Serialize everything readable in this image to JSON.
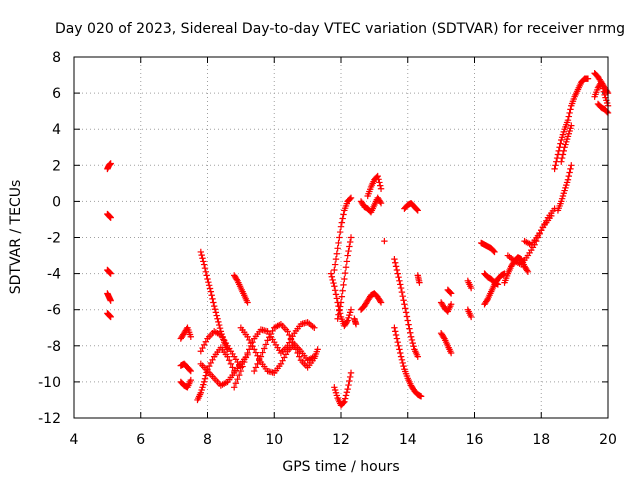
{
  "chart_data": {
    "type": "scatter",
    "title": "Day 020 of 2023, Sidereal Day-to-day VTEC variation (SDTVAR) for receiver nrmg",
    "xlabel": "GPS time / hours",
    "ylabel": "SDTVAR / TECUs",
    "xlim": [
      4,
      20
    ],
    "ylim": [
      -12,
      8
    ],
    "xticks": [
      4,
      6,
      8,
      10,
      12,
      14,
      16,
      18,
      20
    ],
    "yticks": [
      -12,
      -10,
      -8,
      -6,
      -4,
      -2,
      0,
      2,
      4,
      6,
      8
    ],
    "grid": true,
    "marker": "plus",
    "color": "#ff0000",
    "segments": [
      {
        "x": [
          5.0,
          5.05,
          5.1
        ],
        "y": [
          1.8,
          2.0,
          2.1
        ]
      },
      {
        "x": [
          5.0,
          5.05,
          5.1
        ],
        "y": [
          -0.7,
          -0.8,
          -0.9
        ]
      },
      {
        "x": [
          5.0,
          5.05,
          5.1
        ],
        "y": [
          -3.8,
          -3.9,
          -4.0
        ]
      },
      {
        "x": [
          5.0,
          5.05,
          5.1
        ],
        "y": [
          -5.1,
          -5.3,
          -5.5
        ]
      },
      {
        "x": [
          5.0,
          5.05,
          5.1
        ],
        "y": [
          -6.2,
          -6.3,
          -6.4
        ]
      },
      {
        "x": [
          7.2,
          7.3,
          7.4,
          7.5
        ],
        "y": [
          -7.6,
          -7.3,
          -7.0,
          -7.5
        ]
      },
      {
        "x": [
          7.2,
          7.3,
          7.4,
          7.5
        ],
        "y": [
          -9.1,
          -9.0,
          -9.2,
          -9.4
        ]
      },
      {
        "x": [
          7.2,
          7.3,
          7.4,
          7.5
        ],
        "y": [
          -10.0,
          -10.2,
          -10.3,
          -9.9
        ]
      },
      {
        "x": [
          7.8,
          7.9,
          8.0,
          8.1,
          8.2,
          8.3,
          8.4,
          8.5,
          8.6
        ],
        "y": [
          -2.8,
          -3.5,
          -4.3,
          -5.0,
          -5.8,
          -6.5,
          -7.2,
          -7.8,
          -8.2
        ]
      },
      {
        "x": [
          7.7,
          7.8,
          7.9,
          8.0,
          8.2,
          8.4,
          8.6,
          8.8
        ],
        "y": [
          -11.0,
          -10.6,
          -10.0,
          -9.3,
          -8.6,
          -8.1,
          -8.6,
          -9.4
        ]
      },
      {
        "x": [
          7.8,
          8.0,
          8.2,
          8.4,
          8.6,
          8.8,
          9.0
        ],
        "y": [
          -8.3,
          -7.6,
          -7.2,
          -7.4,
          -8.0,
          -8.6,
          -9.2
        ]
      },
      {
        "x": [
          7.8,
          8.0,
          8.2,
          8.4,
          8.6,
          8.8,
          9.0,
          9.2
        ],
        "y": [
          -9.0,
          -9.4,
          -9.8,
          -10.2,
          -10.0,
          -9.5,
          -9.0,
          -8.5
        ]
      },
      {
        "x": [
          8.8,
          8.9,
          9.0,
          9.1,
          9.2
        ],
        "y": [
          -4.1,
          -4.4,
          -4.8,
          -5.2,
          -5.6
        ]
      },
      {
        "x": [
          8.8,
          9.0,
          9.2,
          9.4,
          9.6,
          9.8,
          10.0,
          10.2,
          10.4,
          10.6,
          10.8,
          11.0,
          11.2
        ],
        "y": [
          -10.3,
          -9.4,
          -8.4,
          -7.6,
          -7.1,
          -7.2,
          -7.8,
          -8.4,
          -8.0,
          -7.3,
          -6.8,
          -6.7,
          -7.0
        ]
      },
      {
        "x": [
          9.0,
          9.2,
          9.4,
          9.6,
          9.8,
          10.0,
          10.2,
          10.4,
          10.6,
          10.8,
          11.0,
          11.2
        ],
        "y": [
          -7.0,
          -7.5,
          -8.2,
          -8.9,
          -9.4,
          -9.5,
          -9.0,
          -8.3,
          -7.9,
          -8.3,
          -8.8,
          -8.6
        ]
      },
      {
        "x": [
          9.4,
          9.6,
          9.8,
          10.0,
          10.2,
          10.4,
          10.6,
          10.8,
          11.0,
          11.2,
          11.3
        ],
        "y": [
          -9.4,
          -8.6,
          -7.7,
          -7.0,
          -6.8,
          -7.2,
          -8.0,
          -8.8,
          -9.2,
          -8.7,
          -8.2
        ]
      },
      {
        "x": [
          11.8,
          11.9,
          12.0,
          12.1,
          12.2,
          12.3
        ],
        "y": [
          -10.3,
          -10.9,
          -11.3,
          -11.1,
          -10.4,
          -9.5
        ]
      },
      {
        "x": [
          11.7,
          11.8,
          11.9,
          12.0,
          12.1,
          12.2,
          12.3
        ],
        "y": [
          -4.0,
          -4.7,
          -5.6,
          -6.4,
          -6.9,
          -6.6,
          -6.0
        ]
      },
      {
        "x": [
          11.8,
          11.9,
          12.0,
          12.1,
          12.2,
          12.3
        ],
        "y": [
          -3.8,
          -2.6,
          -1.4,
          -0.5,
          0.0,
          0.2
        ]
      },
      {
        "x": [
          11.9,
          12.0,
          12.1,
          12.2,
          12.3
        ],
        "y": [
          -6.5,
          -5.6,
          -4.3,
          -3.0,
          -2.0
        ]
      },
      {
        "x": [
          12.4,
          12.45
        ],
        "y": [
          -6.5,
          -6.8
        ]
      },
      {
        "x": [
          12.6,
          12.7,
          12.8,
          12.9,
          13.0,
          13.1,
          13.2
        ],
        "y": [
          0.0,
          -0.3,
          -0.4,
          -0.6,
          -0.2,
          0.2,
          -0.1
        ]
      },
      {
        "x": [
          12.8,
          12.9,
          13.0,
          13.1,
          13.2
        ],
        "y": [
          0.3,
          0.8,
          1.2,
          1.4,
          0.7
        ]
      },
      {
        "x": [
          12.6,
          12.7,
          12.8,
          12.9,
          13.0,
          13.1,
          13.2
        ],
        "y": [
          -6.0,
          -5.8,
          -5.5,
          -5.2,
          -5.1,
          -5.3,
          -5.6
        ]
      },
      {
        "x": [
          13.3
        ],
        "y": [
          -2.2
        ]
      },
      {
        "x": [
          13.6,
          13.7,
          13.8,
          13.9,
          14.0,
          14.1,
          14.2,
          14.3
        ],
        "y": [
          -3.2,
          -4.0,
          -4.8,
          -5.7,
          -6.6,
          -7.5,
          -8.2,
          -8.6
        ]
      },
      {
        "x": [
          13.6,
          13.7,
          13.8,
          13.9,
          14.0,
          14.1,
          14.2,
          14.3,
          14.4
        ],
        "y": [
          -7.0,
          -7.8,
          -8.6,
          -9.3,
          -9.8,
          -10.2,
          -10.5,
          -10.7,
          -10.8
        ]
      },
      {
        "x": [
          13.9,
          14.0,
          14.1,
          14.2,
          14.3
        ],
        "y": [
          -0.4,
          -0.2,
          -0.1,
          -0.3,
          -0.5
        ]
      },
      {
        "x": [
          14.3,
          14.35
        ],
        "y": [
          -4.1,
          -4.5
        ]
      },
      {
        "x": [
          15.0,
          15.1,
          15.2,
          15.3
        ],
        "y": [
          -5.6,
          -5.9,
          -6.1,
          -5.7
        ]
      },
      {
        "x": [
          15.0,
          15.1,
          15.2,
          15.3
        ],
        "y": [
          -7.3,
          -7.6,
          -8.0,
          -8.4
        ]
      },
      {
        "x": [
          15.2,
          15.3
        ],
        "y": [
          -4.9,
          -5.1
        ]
      },
      {
        "x": [
          15.8,
          15.9
        ],
        "y": [
          -4.4,
          -4.8
        ]
      },
      {
        "x": [
          15.8,
          15.9
        ],
        "y": [
          -6.0,
          -6.4
        ]
      },
      {
        "x": [
          16.2,
          16.3,
          16.4,
          16.5,
          16.6
        ],
        "y": [
          -2.3,
          -2.4,
          -2.5,
          -2.6,
          -2.8
        ]
      },
      {
        "x": [
          16.3,
          16.4,
          16.5,
          16.6,
          16.7,
          16.8,
          16.9
        ],
        "y": [
          -5.7,
          -5.4,
          -5.0,
          -4.6,
          -4.3,
          -4.1,
          -4.0
        ]
      },
      {
        "x": [
          16.3,
          16.4,
          16.5,
          16.6,
          16.7
        ],
        "y": [
          -4.0,
          -4.2,
          -4.3,
          -4.5,
          -4.6
        ]
      },
      {
        "x": [
          16.9,
          17.0,
          17.1,
          17.2,
          17.3,
          17.4,
          17.5,
          17.6
        ],
        "y": [
          -4.5,
          -4.0,
          -3.6,
          -3.3,
          -3.1,
          -3.2,
          -3.6,
          -3.9
        ]
      },
      {
        "x": [
          17.0,
          17.2,
          17.4,
          17.6,
          17.8,
          18.0,
          18.2,
          18.4
        ],
        "y": [
          -3.0,
          -3.3,
          -3.5,
          -3.0,
          -2.4,
          -1.6,
          -0.9,
          -0.4
        ]
      },
      {
        "x": [
          17.5,
          17.7,
          17.9,
          18.1,
          18.3
        ],
        "y": [
          -2.2,
          -2.4,
          -1.9,
          -1.3,
          -0.8
        ]
      },
      {
        "x": [
          18.4,
          18.5,
          18.6,
          18.7,
          18.8,
          18.9,
          19.0,
          19.1,
          19.2,
          19.3,
          19.4
        ],
        "y": [
          1.8,
          2.6,
          3.4,
          4.0,
          4.5,
          5.3,
          5.8,
          6.2,
          6.6,
          6.8,
          6.8
        ]
      },
      {
        "x": [
          18.5,
          18.6,
          18.7,
          18.8,
          18.9
        ],
        "y": [
          -0.5,
          0.0,
          0.6,
          1.2,
          2.0
        ]
      },
      {
        "x": [
          18.6,
          18.7,
          18.8,
          18.9
        ],
        "y": [
          2.2,
          3.0,
          3.6,
          4.2
        ]
      },
      {
        "x": [
          19.6,
          19.7,
          19.8,
          19.9,
          20.0
        ],
        "y": [
          5.8,
          6.3,
          6.6,
          5.9,
          5.3
        ]
      },
      {
        "x": [
          19.6,
          19.7,
          19.8,
          19.9,
          20.0
        ],
        "y": [
          7.1,
          6.9,
          6.6,
          6.3,
          6.0
        ]
      },
      {
        "x": [
          19.7,
          19.8,
          19.9,
          20.0
        ],
        "y": [
          5.4,
          5.2,
          5.1,
          4.9
        ]
      }
    ]
  }
}
